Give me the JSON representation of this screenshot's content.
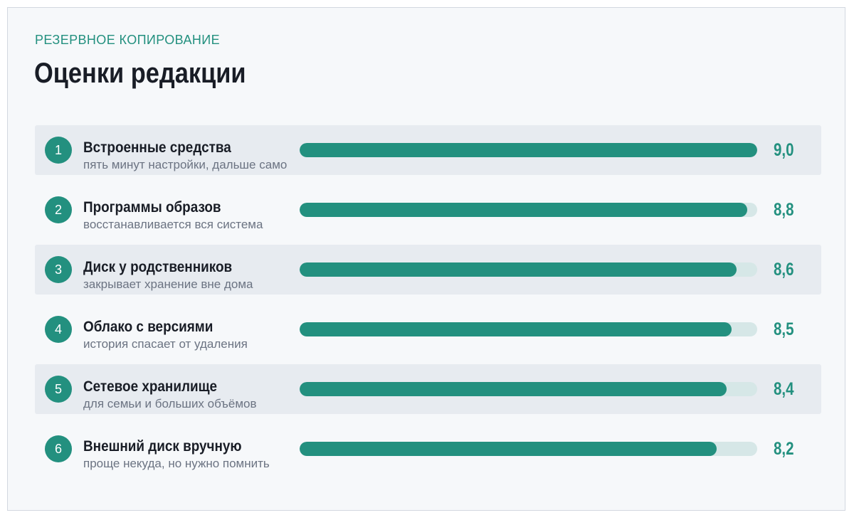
{
  "header": {
    "eyebrow": "РЕЗЕРВНОЕ КОПИРОВАНИЕ",
    "title": "Оценки редакции"
  },
  "colors": {
    "accent": "#23907f",
    "track": "#d6e7e7",
    "shaded_row": "#e7ebf0",
    "background": "#f6f8fa"
  },
  "chart_data": {
    "type": "bar",
    "orientation": "horizontal",
    "title": "Оценки редакции",
    "subtitle": "РЕЗЕРВНОЕ КОПИРОВАНИЕ",
    "xlim": [
      0,
      9
    ],
    "grid": false,
    "legend": "none",
    "items": [
      {
        "rank": "1",
        "label": "Встроенные средства",
        "note": "пять минут настройки, дальше само",
        "value": 9.0,
        "display": "9,0"
      },
      {
        "rank": "2",
        "label": "Программы образов",
        "note": "восстанавливается вся система",
        "value": 8.8,
        "display": "8,8"
      },
      {
        "rank": "3",
        "label": "Диск у родственников",
        "note": "закрывает хранение вне дома",
        "value": 8.6,
        "display": "8,6"
      },
      {
        "rank": "4",
        "label": "Облако с версиями",
        "note": "история спасает от удаления",
        "value": 8.5,
        "display": "8,5"
      },
      {
        "rank": "5",
        "label": "Сетевое хранилище",
        "note": "для семьи и больших объёмов",
        "value": 8.4,
        "display": "8,4"
      },
      {
        "rank": "6",
        "label": "Внешний диск вручную",
        "note": "проще некуда, но нужно помнить",
        "value": 8.2,
        "display": "8,2"
      }
    ]
  }
}
